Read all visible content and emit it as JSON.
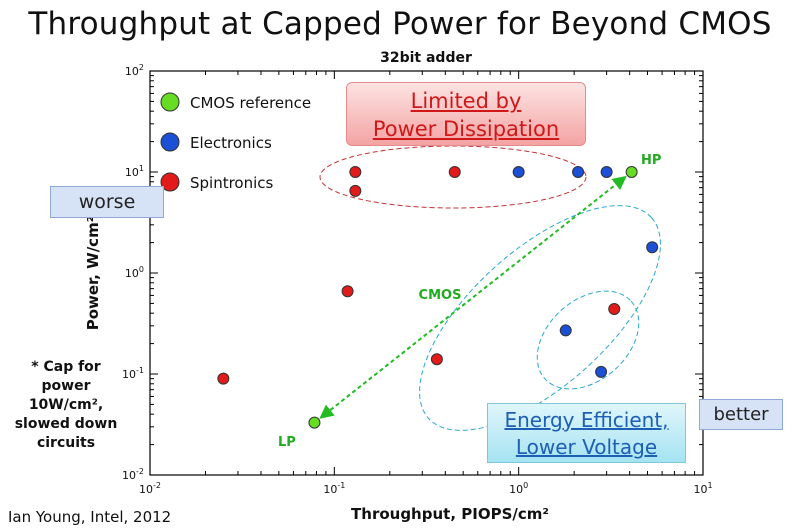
{
  "slide_title": "Throughput at Capped Power for Beyond CMOS",
  "credit": "Ian Young, Intel, 2012",
  "worse_label": "worse",
  "better_label": "better",
  "limited_box": [
    "Limited by",
    "Power Dissipation"
  ],
  "energy_box": [
    "Energy Efficient,",
    "Lower Voltage"
  ],
  "cap_note": [
    "* Cap for",
    "power",
    "10W/cm²,",
    "slowed down",
    "circuits"
  ],
  "chart_data": {
    "type": "scatter",
    "title": "32bit adder",
    "xlabel": "Throughput, PIOPS/cm²",
    "ylabel": "Power, W/cm²",
    "x_scale": "log",
    "y_scale": "log",
    "xlim": [
      0.01,
      10
    ],
    "ylim": [
      0.01,
      100
    ],
    "x_tick_labels": [
      {
        "value": 0.01,
        "base": "10",
        "exp": "-2"
      },
      {
        "value": 0.1,
        "base": "10",
        "exp": "-1"
      },
      {
        "value": 1,
        "base": "10",
        "exp": "0"
      },
      {
        "value": 10,
        "base": "10",
        "exp": "1"
      }
    ],
    "y_tick_labels": [
      {
        "value": 0.01,
        "base": "10",
        "exp": "-2"
      },
      {
        "value": 0.1,
        "base": "10",
        "exp": "-1"
      },
      {
        "value": 1,
        "base": "10",
        "exp": "0"
      },
      {
        "value": 10,
        "base": "10",
        "exp": "1"
      },
      {
        "value": 100,
        "base": "10",
        "exp": "2"
      }
    ],
    "grid": false,
    "legend_position": "top-left",
    "series": [
      {
        "name": "CMOS reference",
        "color": "#66dd22",
        "points": [
          {
            "x": 4.1,
            "y": 10,
            "label": "HP"
          },
          {
            "x": 0.078,
            "y": 0.033,
            "label": "LP"
          }
        ]
      },
      {
        "name": "Electronics",
        "color": "#1a4fd6",
        "points": [
          {
            "x": 1.0,
            "y": 10
          },
          {
            "x": 2.1,
            "y": 10
          },
          {
            "x": 3.0,
            "y": 10
          },
          {
            "x": 5.3,
            "y": 1.8
          },
          {
            "x": 1.8,
            "y": 0.27
          },
          {
            "x": 2.8,
            "y": 0.105
          }
        ]
      },
      {
        "name": "Spintronics",
        "color": "#e21a1a",
        "points": [
          {
            "x": 0.13,
            "y": 10
          },
          {
            "x": 0.13,
            "y": 6.5
          },
          {
            "x": 0.45,
            "y": 10
          },
          {
            "x": 0.118,
            "y": 0.66
          },
          {
            "x": 0.36,
            "y": 0.14
          },
          {
            "x": 3.3,
            "y": 0.44
          },
          {
            "x": 0.025,
            "y": 0.09
          }
        ]
      }
    ],
    "annotations": [
      {
        "text": "CMOS",
        "color": "#22aa22"
      }
    ]
  }
}
